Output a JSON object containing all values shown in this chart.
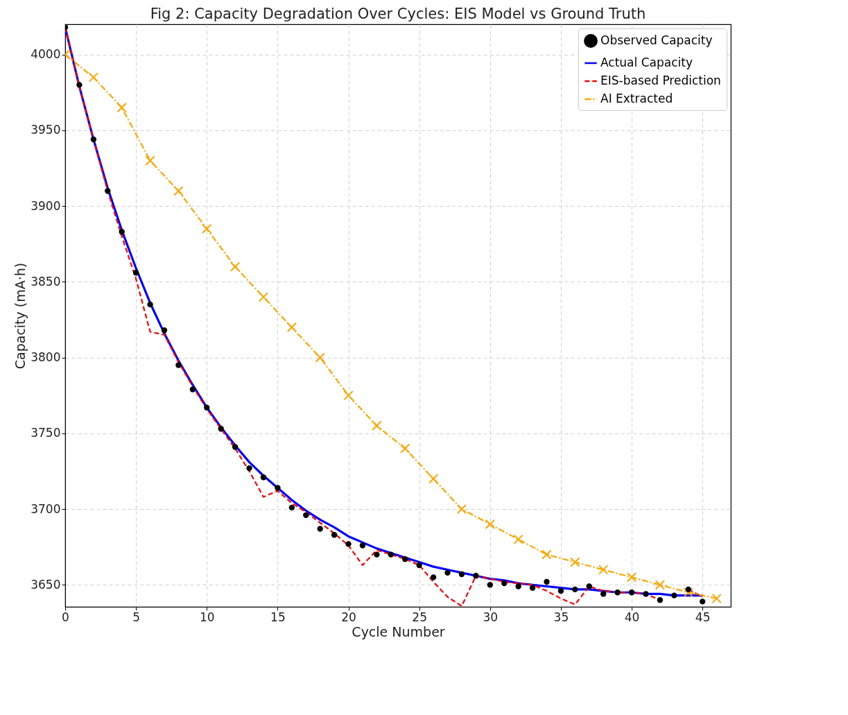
{
  "chart_data": {
    "type": "line",
    "title": "Fig 2: Capacity Degradation Over Cycles: EIS Model vs Ground Truth",
    "xlabel": "Cycle Number",
    "ylabel": "Capacity (mA·h)",
    "xlim": [
      0,
      47
    ],
    "xticks": [
      0,
      5,
      10,
      15,
      20,
      25,
      30,
      35,
      40,
      45
    ],
    "ylim": [
      3635.5,
      4020
    ],
    "yticks": [
      3650,
      3700,
      3750,
      3800,
      3850,
      3900,
      3950,
      4000
    ],
    "grid": true,
    "legend": "top right",
    "x": [
      0,
      1,
      2,
      3,
      4,
      5,
      6,
      7,
      8,
      9,
      10,
      11,
      12,
      13,
      14,
      15,
      16,
      17,
      18,
      19,
      20,
      21,
      22,
      23,
      24,
      25,
      26,
      27,
      28,
      29,
      30,
      31,
      32,
      33,
      34,
      35,
      36,
      37,
      38,
      39,
      40,
      41,
      42,
      43,
      44,
      45
    ],
    "series": [
      {
        "name": "Observed Capacity",
        "type": "scatter",
        "marker": "circle",
        "color": "#000000",
        "values": [
          4018,
          3980,
          3944,
          3910,
          3883,
          3856,
          3835,
          3818,
          3795,
          3779,
          3767,
          3753,
          3741,
          3727,
          3721,
          3714,
          3701,
          3696,
          3687,
          3683,
          3677,
          3676,
          3670,
          3670,
          3667,
          3663,
          3655,
          3658,
          3657,
          3656,
          3650,
          3651,
          3649,
          3648,
          3652,
          3646,
          3647,
          3649,
          3644,
          3645,
          3645,
          3644,
          3640,
          3643,
          3647,
          3639
        ]
      },
      {
        "name": "Actual Capacity",
        "type": "line",
        "line_style": "solid",
        "marker": "none",
        "color": "#0000ff",
        "values": [
          4018,
          3979,
          3944,
          3912,
          3884,
          3859,
          3836,
          3816,
          3798,
          3782,
          3767,
          3754,
          3742,
          3731,
          3722,
          3714,
          3706,
          3699,
          3693,
          3688,
          3682,
          3678,
          3674,
          3671,
          3668,
          3665,
          3662,
          3660,
          3658,
          3656,
          3654,
          3653,
          3651,
          3650,
          3649,
          3648,
          3647,
          3647,
          3646,
          3645,
          3645,
          3644,
          3644,
          3643,
          3643,
          3643
        ]
      },
      {
        "name": "EIS-based Prediction",
        "type": "line",
        "line_style": "dashed",
        "marker": "none",
        "color": "#ff0000",
        "values": [
          4018,
          3979,
          3944,
          3910,
          3880,
          3852,
          3817,
          3815,
          3797,
          3781,
          3766,
          3753,
          3740,
          3725,
          3708,
          3712,
          3704,
          3698,
          3691,
          3684,
          3676,
          3663,
          3673,
          3670,
          3667,
          3663,
          3652,
          3642,
          3636,
          3656,
          3654,
          3652,
          3651,
          3650,
          3646,
          3641,
          3637,
          3649,
          3646,
          3645,
          3645,
          3644,
          3640,
          null,
          3647,
          3642
        ]
      },
      {
        "name": "AI Extracted",
        "type": "line",
        "line_style": "dashdot",
        "marker": "cross",
        "color": "#ffa500",
        "x": [
          0,
          2,
          4,
          6,
          8,
          10,
          12,
          14,
          16,
          18,
          20,
          22,
          24,
          26,
          28,
          30,
          32,
          34,
          36,
          38,
          40,
          42,
          44,
          46
        ],
        "values": [
          4000,
          3985,
          3965,
          3930,
          3910,
          3885,
          3860,
          3840,
          3820,
          3800,
          3775,
          3755,
          3740,
          3720,
          3700,
          3690,
          3680,
          3670,
          3665,
          3660,
          3655,
          3650,
          3645,
          3641
        ]
      }
    ]
  }
}
